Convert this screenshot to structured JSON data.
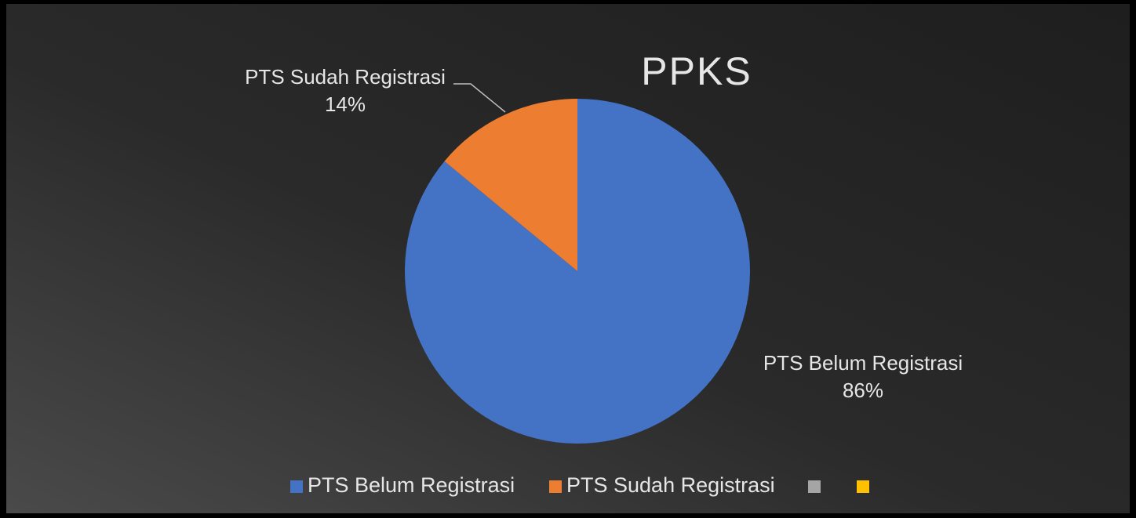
{
  "chart_data": {
    "type": "pie",
    "title": "PPKS",
    "categories": [
      "PTS Belum Registrasi",
      "PTS Sudah Registrasi",
      null,
      null
    ],
    "values": [
      86,
      14,
      null,
      null
    ],
    "value_labels": [
      "86%",
      "14%",
      null,
      null
    ],
    "colors": [
      "#4472c4",
      "#ed7d31",
      "#a5a5a5",
      "#ffc000"
    ],
    "legend": "bottom"
  }
}
